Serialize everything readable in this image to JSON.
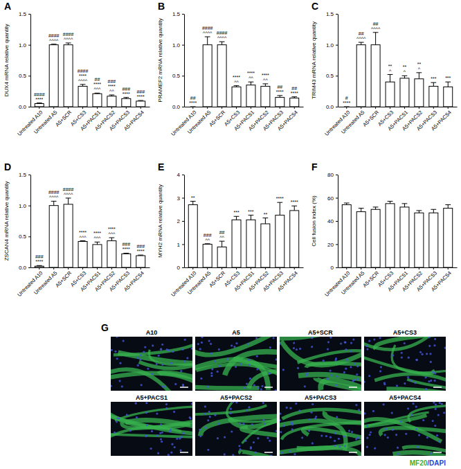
{
  "chart_data": [
    {
      "type": "bar",
      "title": "A",
      "y_label": "DUX4 mRNA relative quantity",
      "categories": [
        "Untreated A10",
        "Untreated A5",
        "A5+SCR",
        "A5+CS3",
        "A5+PACS1",
        "A5+PACS2",
        "A5+PACS3",
        "A5+PACS4"
      ],
      "values": [
        0.05,
        1.0,
        1.0,
        0.33,
        0.21,
        0.17,
        0.13,
        0.09
      ],
      "errors": [
        0.01,
        0.01,
        0.03,
        0.03,
        0.01,
        0.02,
        0.02,
        0.01
      ],
      "annotations": [
        [
          "####",
          "****"
        ],
        [
          "####",
          "^^^^"
        ],
        [
          "####",
          "^^^^"
        ],
        [
          "####",
          "****",
          "^^^^"
        ],
        [
          "##",
          "****",
          "^^^"
        ],
        [
          "###",
          "****",
          "^^"
        ],
        [
          "###",
          "****"
        ],
        [
          "###",
          "****"
        ]
      ],
      "color": "#ffffff",
      "ylim": [
        0,
        1.5
      ],
      "yticks": [
        {
          "value": 0,
          "label": "0.0"
        },
        {
          "value": 0.5,
          "label": "0.5"
        },
        {
          "value": 1,
          "label": "1.0"
        },
        {
          "value": 1.5,
          "label": "1.5"
        }
      ]
    },
    {
      "type": "bar",
      "title": "B",
      "y_label": "PRAMEF2 mRNA relative quantity",
      "categories": [
        "Untreated A10",
        "Untreated A5",
        "A5+SCR",
        "A5+CS3",
        "A5+PACS1",
        "A5+PACS2",
        "A5+PACS3",
        "A5+PACS4"
      ],
      "values": [
        0.0,
        1.0,
        1.0,
        0.32,
        0.35,
        0.33,
        0.15,
        0.14
      ],
      "errors": [
        0.0,
        0.13,
        0.05,
        0.02,
        0.05,
        0.04,
        0.03,
        0.02
      ],
      "annotations": [
        [
          "##",
          "****"
        ],
        [
          "####",
          "^^^^"
        ],
        [
          "####",
          "^^^^"
        ],
        [
          "****",
          "^^"
        ],
        [
          "****",
          "^^"
        ],
        [
          "****",
          "^^"
        ],
        [
          "##",
          "****"
        ],
        [
          "##",
          "****"
        ]
      ],
      "color": "#ffffff",
      "ylim": [
        0,
        1.5
      ],
      "yticks": [
        {
          "value": 0,
          "label": "0.0"
        },
        {
          "value": 0.5,
          "label": "0.5"
        },
        {
          "value": 1,
          "label": "1.0"
        },
        {
          "value": 1.5,
          "label": "1.5"
        }
      ]
    },
    {
      "type": "bar",
      "title": "C",
      "y_label": "TRIM43 mRNA relative quantity",
      "categories": [
        "Untreated A10",
        "Untreated A5",
        "A5+SCR",
        "A5+CS3",
        "A5+PACS1",
        "A5+PACS2",
        "A5+PACS3",
        "A5+PACS4"
      ],
      "values": [
        0.0,
        1.0,
        1.0,
        0.4,
        0.46,
        0.45,
        0.33,
        0.32
      ],
      "errors": [
        0.0,
        0.04,
        0.2,
        0.12,
        0.04,
        0.1,
        0.06,
        0.08
      ],
      "annotations": [
        [
          "#",
          "****"
        ],
        [
          "##",
          "^^^^"
        ],
        [
          "##",
          "^^^^"
        ],
        [
          "**",
          "^"
        ],
        [
          "**",
          "^"
        ],
        [
          "**",
          "^"
        ],
        [
          "***"
        ],
        [
          "***"
        ]
      ],
      "color": "#ffffff",
      "ylim": [
        0,
        1.5
      ],
      "yticks": [
        {
          "value": 0,
          "label": "0.0"
        },
        {
          "value": 0.5,
          "label": "0.5"
        },
        {
          "value": 1,
          "label": "1.0"
        },
        {
          "value": 1.5,
          "label": "1.5"
        }
      ]
    },
    {
      "type": "bar",
      "title": "D",
      "y_label": "ZSCAN4 mRNA relative quantity",
      "categories": [
        "Untreated A10",
        "Untreated A5",
        "A5+SCR",
        "A5+CS3",
        "A5+PACS1",
        "A5+PACS2",
        "A5+PACS3",
        "A5+PACS4"
      ],
      "values": [
        0.02,
        1.0,
        1.02,
        0.42,
        0.37,
        0.43,
        0.22,
        0.19
      ],
      "errors": [
        0.01,
        0.07,
        0.1,
        0.01,
        0.04,
        0.05,
        0.01,
        0.01
      ],
      "annotations": [
        [
          "###",
          "****"
        ],
        [
          "####",
          "^^^^"
        ],
        [
          "####",
          "^^^^"
        ],
        [
          "****",
          "^^^"
        ],
        [
          "****",
          "^^^"
        ],
        [
          "****",
          "^^^"
        ],
        [
          "###",
          "****"
        ],
        [
          "###",
          "****"
        ]
      ],
      "color": "#ffffff",
      "ylim": [
        0,
        1.5
      ],
      "yticks": [
        {
          "value": 0,
          "label": "0.0"
        },
        {
          "value": 0.5,
          "label": "0.5"
        },
        {
          "value": 1,
          "label": "1.0"
        },
        {
          "value": 1.5,
          "label": "1.5"
        }
      ]
    },
    {
      "type": "bar",
      "title": "E",
      "y_label": "MYH2 mRNA relative quantity",
      "categories": [
        "Untreated A10",
        "Untreated A5",
        "A5+SCR",
        "A5+CS3",
        "A5+PACS1",
        "A5+PACS2",
        "A5+PACS3",
        "A5+PACS4"
      ],
      "values": [
        2.7,
        1.0,
        0.88,
        2.05,
        2.05,
        1.88,
        2.25,
        2.45
      ],
      "errors": [
        0.15,
        0.02,
        0.25,
        0.15,
        0.2,
        0.25,
        0.55,
        0.2
      ],
      "annotations": [
        [
          "**"
        ],
        [
          "###",
          "^^"
        ],
        [
          "##",
          "^^"
        ],
        [
          "***"
        ],
        [
          "***"
        ],
        [
          "**"
        ],
        [
          "****"
        ],
        [
          "****"
        ]
      ],
      "color": "#ffffff",
      "ylim": [
        0,
        4
      ],
      "yticks": [
        0,
        1,
        2,
        3,
        4
      ]
    },
    {
      "type": "bar",
      "title": "F",
      "y_label": "Cell fusion index (%)",
      "categories": [
        "Untreated A10",
        "Untreated A5",
        "A5+SCR",
        "A5+CS3",
        "A5+PACS1",
        "A5+PACS2",
        "A5+PACS3",
        "A5+PACS4"
      ],
      "values": [
        54,
        48,
        50,
        55,
        52,
        47,
        47,
        51
      ],
      "errors": [
        1.5,
        3,
        2,
        2,
        3,
        2,
        3,
        3
      ],
      "color": "#ffffff",
      "ylim": [
        0,
        80
      ],
      "yticks": [
        0,
        20,
        40,
        60,
        80
      ]
    }
  ],
  "images": {
    "title": "G",
    "panels": [
      "A10",
      "A5",
      "A5+SCR",
      "A5+CS3",
      "A5+PACS1",
      "A5+PACS2",
      "A5+PACS3",
      "A5+PACS4"
    ],
    "stain": [
      {
        "text": "MF20",
        "color": "#3cb043"
      },
      {
        "text": "/DAPI",
        "color": "#2a3fd6"
      }
    ]
  }
}
